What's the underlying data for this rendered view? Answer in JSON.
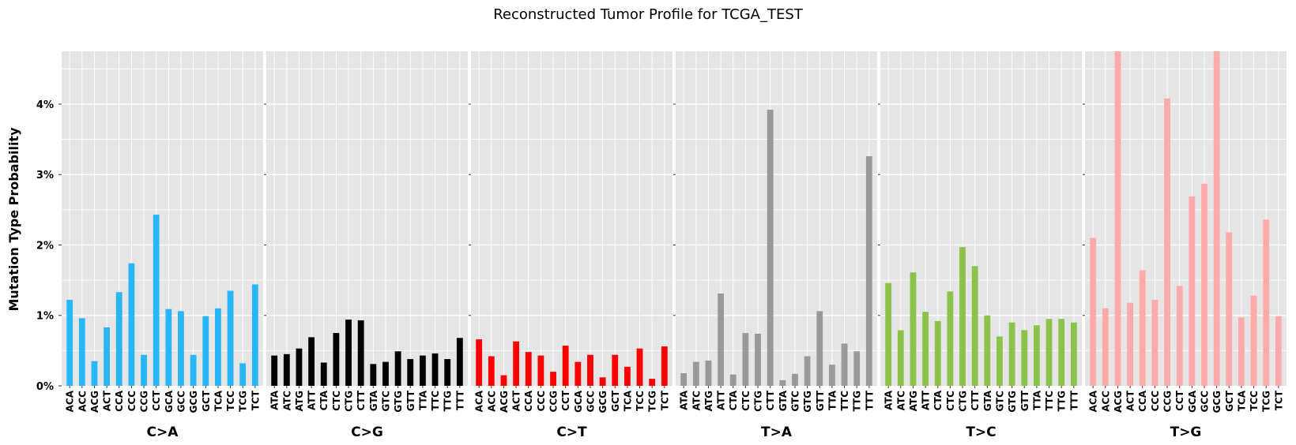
{
  "chart_data": {
    "type": "bar",
    "title": "Reconstructed Tumor Profile for TCGA_TEST",
    "ylabel": "Mutation Type Probability",
    "ylim": [
      0,
      4.75
    ],
    "yticks": [
      0,
      1,
      2,
      3,
      4
    ],
    "ytick_labels": [
      "0%",
      "1%",
      "2%",
      "3%",
      "4%"
    ],
    "grid": true,
    "background": "#e5e5e5",
    "groups": [
      {
        "name": "C>A",
        "color": "#29b6f6",
        "categories": [
          "ACA",
          "ACC",
          "ACG",
          "ACT",
          "CCA",
          "CCC",
          "CCG",
          "CCT",
          "GCA",
          "GCC",
          "GCG",
          "GCT",
          "TCA",
          "TCC",
          "TCG",
          "TCT"
        ],
        "values": [
          1.22,
          0.96,
          0.35,
          0.83,
          1.33,
          1.74,
          0.44,
          2.43,
          1.09,
          1.06,
          0.44,
          0.99,
          1.1,
          1.35,
          0.32,
          1.44
        ]
      },
      {
        "name": "C>G",
        "color": "#000000",
        "categories": [
          "ATA",
          "ATC",
          "ATG",
          "ATT",
          "CTA",
          "CTC",
          "CTG",
          "CTT",
          "GTA",
          "GTC",
          "GTG",
          "GTT",
          "TTA",
          "TTC",
          "TTG",
          "TTT"
        ],
        "values": [
          0.43,
          0.45,
          0.53,
          0.69,
          0.33,
          0.75,
          0.94,
          0.93,
          0.31,
          0.34,
          0.49,
          0.38,
          0.43,
          0.46,
          0.38,
          0.68
        ]
      },
      {
        "name": "C>T",
        "color": "#ff0000",
        "categories": [
          "ACA",
          "ACC",
          "ACG",
          "ACT",
          "CCA",
          "CCC",
          "CCG",
          "CCT",
          "GCA",
          "GCC",
          "GCG",
          "GCT",
          "TCA",
          "TCC",
          "TCG",
          "TCT"
        ],
        "values": [
          0.66,
          0.42,
          0.15,
          0.63,
          0.48,
          0.43,
          0.2,
          0.57,
          0.34,
          0.44,
          0.12,
          0.44,
          0.27,
          0.53,
          0.1,
          0.56
        ]
      },
      {
        "name": "T>A",
        "color": "#999999",
        "categories": [
          "ATA",
          "ATC",
          "ATG",
          "ATT",
          "CTA",
          "CTC",
          "CTG",
          "CTT",
          "GTA",
          "GTC",
          "GTG",
          "GTT",
          "TTA",
          "TTC",
          "TTG",
          "TTT"
        ],
        "values": [
          0.18,
          0.34,
          0.36,
          1.31,
          0.16,
          0.75,
          0.74,
          3.92,
          0.08,
          0.17,
          0.42,
          1.06,
          0.3,
          0.6,
          0.49,
          3.26
        ]
      },
      {
        "name": "T>C",
        "color": "#8bc34a",
        "categories": [
          "ATA",
          "ATC",
          "ATG",
          "ATT",
          "CTA",
          "CTC",
          "CTG",
          "CTT",
          "GTA",
          "GTC",
          "GTG",
          "GTT",
          "TTA",
          "TTC",
          "TTG",
          "TTT"
        ],
        "values": [
          1.46,
          0.79,
          1.61,
          1.05,
          0.92,
          1.34,
          1.97,
          1.7,
          1.0,
          0.7,
          0.9,
          0.79,
          0.86,
          0.95,
          0.95,
          0.9
        ]
      },
      {
        "name": "T>G",
        "color": "#ffaaaa",
        "categories": [
          "ACA",
          "ACC",
          "ACG",
          "ACT",
          "CCA",
          "CCC",
          "CCG",
          "CCT",
          "GCA",
          "GCC",
          "GCG",
          "GCT",
          "TCA",
          "TCC",
          "TCG",
          "TCT"
        ],
        "values": [
          2.1,
          1.1,
          4.75,
          1.18,
          1.64,
          1.22,
          4.08,
          1.42,
          2.69,
          2.87,
          4.75,
          2.18,
          0.97,
          1.28,
          2.36,
          0.99
        ]
      }
    ]
  }
}
